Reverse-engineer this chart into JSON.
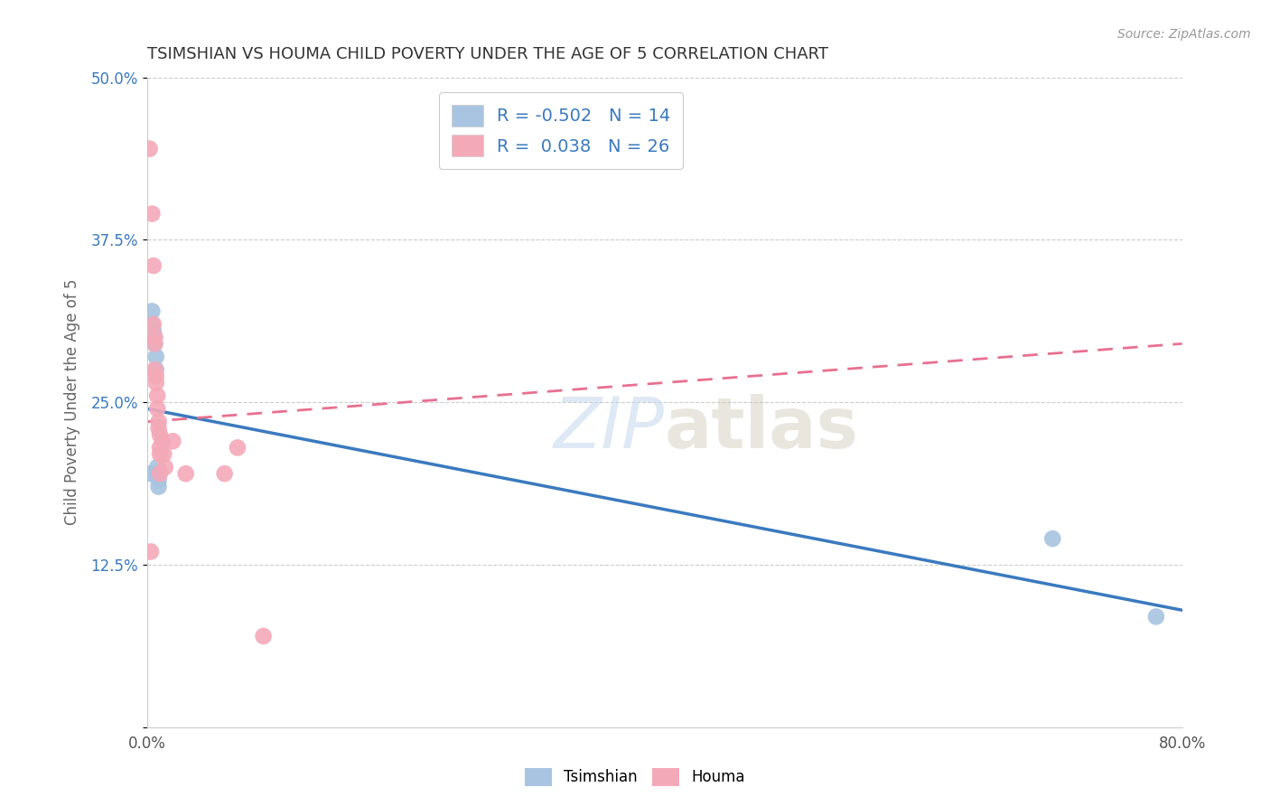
{
  "title": "TSIMSHIAN VS HOUMA CHILD POVERTY UNDER THE AGE OF 5 CORRELATION CHART",
  "source": "Source: ZipAtlas.com",
  "xlabel": "",
  "ylabel": "Child Poverty Under the Age of 5",
  "xlim": [
    0.0,
    0.8
  ],
  "ylim": [
    0.0,
    0.5
  ],
  "xticks": [
    0.0,
    0.1,
    0.2,
    0.3,
    0.4,
    0.5,
    0.6,
    0.7,
    0.8
  ],
  "yticks": [
    0.0,
    0.125,
    0.25,
    0.375,
    0.5
  ],
  "tsimshian_R": -0.502,
  "tsimshian_N": 14,
  "houma_R": 0.038,
  "houma_N": 26,
  "tsimshian_color": "#a8c4e0",
  "houma_color": "#f4a9b8",
  "tsimshian_line_color": "#3a7abf",
  "houma_line_color": "#e87090",
  "watermark_zip": "ZIP",
  "watermark_atlas": "atlas",
  "tsimshian_x": [
    0.003,
    0.004,
    0.004,
    0.005,
    0.006,
    0.006,
    0.007,
    0.007,
    0.008,
    0.008,
    0.009,
    0.009,
    0.7,
    0.78
  ],
  "tsimshian_y": [
    0.195,
    0.32,
    0.31,
    0.305,
    0.3,
    0.295,
    0.285,
    0.275,
    0.2,
    0.195,
    0.19,
    0.185,
    0.145,
    0.085
  ],
  "houma_x": [
    0.002,
    0.003,
    0.004,
    0.005,
    0.005,
    0.006,
    0.006,
    0.006,
    0.007,
    0.007,
    0.008,
    0.008,
    0.009,
    0.009,
    0.01,
    0.01,
    0.01,
    0.01,
    0.012,
    0.013,
    0.014,
    0.02,
    0.03,
    0.06,
    0.07,
    0.09
  ],
  "houma_y": [
    0.445,
    0.135,
    0.395,
    0.355,
    0.31,
    0.3,
    0.295,
    0.275,
    0.27,
    0.265,
    0.255,
    0.245,
    0.235,
    0.23,
    0.225,
    0.215,
    0.21,
    0.195,
    0.22,
    0.21,
    0.2,
    0.22,
    0.195,
    0.195,
    0.215,
    0.07
  ],
  "tsimshian_line_x": [
    0.0,
    0.8
  ],
  "tsimshian_line_y": [
    0.245,
    0.09
  ],
  "houma_line_x": [
    0.0,
    0.8
  ],
  "houma_line_y": [
    0.235,
    0.295
  ],
  "background_color": "#ffffff",
  "grid_color": "#cccccc"
}
